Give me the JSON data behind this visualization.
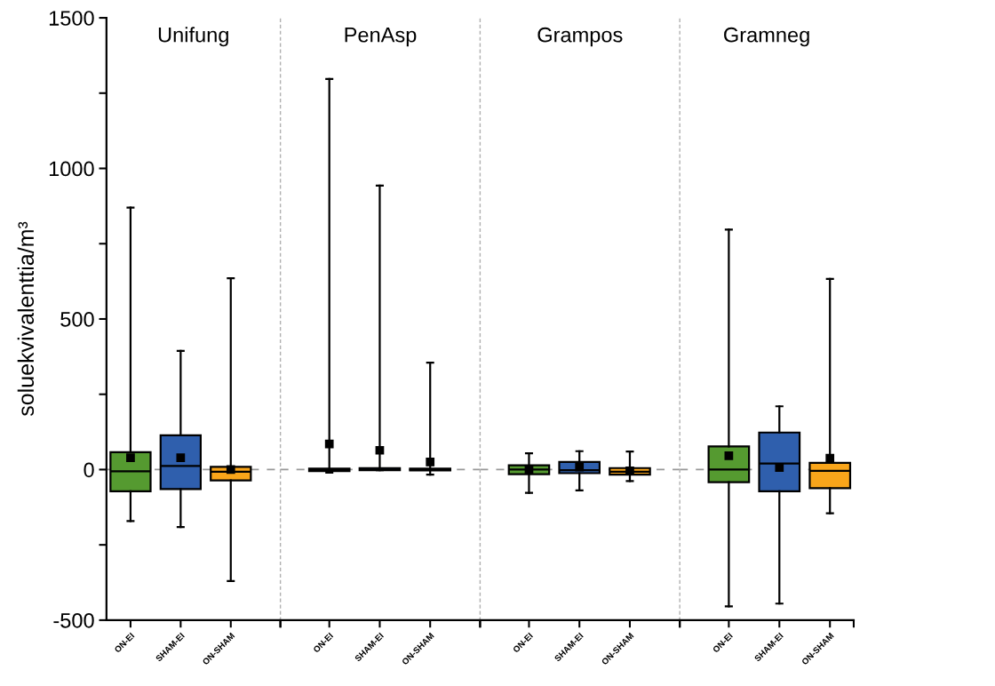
{
  "chart_data": [
    {
      "type": "box",
      "title": "Unifung",
      "ylabel": "soluekvivalenttia/m³",
      "categories": [
        "ON-EI",
        "SHAM-EI",
        "ON-SHAM"
      ],
      "colors": [
        "#559a30",
        "#2f5fad",
        "#f9a51a"
      ],
      "marker": "square",
      "boxes": [
        {
          "low": -171,
          "q1": -72,
          "median": -6,
          "q3": 58,
          "high": 870,
          "mean": 39
        },
        {
          "low": -191,
          "q1": -65,
          "median": 12,
          "q3": 114,
          "high": 394,
          "mean": 39
        },
        {
          "low": -370,
          "q1": -36,
          "median": -7,
          "q3": 9,
          "high": 635,
          "mean": 0
        }
      ],
      "ylim": [
        -500,
        1500
      ],
      "yticks": [
        -500,
        {
          "value": -250,
          "label": null
        },
        0,
        {
          "value": 250,
          "label": null
        },
        500,
        {
          "value": 750,
          "label": null
        },
        1000,
        {
          "value": 1250,
          "label": null
        },
        1500
      ],
      "ref_lines": [
        {
          "axis": "y",
          "value": 0,
          "label": null,
          "color": "#999999",
          "line_style": "dashed"
        }
      ]
    },
    {
      "type": "box",
      "title": "PenAsp",
      "categories": [
        "ON-EI",
        "SHAM-EI",
        "ON-SHAM"
      ],
      "colors": [
        "#559a30",
        "#2f5fad",
        "#f9a51a"
      ],
      "marker": "square",
      "boxes": [
        {
          "low": -10,
          "q1": -5,
          "median": 0,
          "q3": 3,
          "high": 1297,
          "mean": 85
        },
        {
          "low": -2,
          "q1": -2,
          "median": 0,
          "q3": 5,
          "high": 943,
          "mean": 64
        },
        {
          "low": -17,
          "q1": -3,
          "median": 0,
          "q3": 3,
          "high": 355,
          "mean": 25
        }
      ],
      "ylim": [
        -500,
        1500
      ],
      "tick_labels": "x",
      "ref_lines": [
        {
          "axis": "y",
          "value": 0,
          "label": null,
          "color": "#999999",
          "line_style": "dashed"
        }
      ]
    },
    {
      "type": "box",
      "title": "Grampos",
      "categories": [
        "ON-EI",
        "SHAM-EI",
        "ON-SHAM"
      ],
      "colors": [
        "#559a30",
        "#2f5fad",
        "#f9a51a"
      ],
      "marker": "square",
      "boxes": [
        {
          "low": -77,
          "q1": -15,
          "median": 0,
          "q3": 14,
          "high": 54,
          "mean": 1
        },
        {
          "low": -69,
          "q1": -12,
          "median": -2,
          "q3": 25,
          "high": 61,
          "mean": 8
        },
        {
          "low": -38,
          "q1": -17,
          "median": -7,
          "q3": 5,
          "high": 60,
          "mean": -4
        }
      ],
      "ylim": [
        -500,
        1500
      ],
      "tick_labels": "x",
      "ref_lines": [
        {
          "axis": "y",
          "value": 0,
          "label": null,
          "color": "#999999",
          "line_style": "dashed"
        }
      ]
    },
    {
      "type": "box",
      "title": "Gramneg",
      "categories": [
        "ON-EI",
        "SHAM-EI",
        "ON-SHAM"
      ],
      "colors": [
        "#559a30",
        "#2f5fad",
        "#f9a51a"
      ],
      "marker": "square",
      "boxes": [
        {
          "low": -454,
          "q1": -42,
          "median": 0,
          "q3": 77,
          "high": 797,
          "mean": 46
        },
        {
          "low": -445,
          "q1": -72,
          "median": 20,
          "q3": 123,
          "high": 210,
          "mean": 7
        },
        {
          "low": -145,
          "q1": -62,
          "median": -4,
          "q3": 22,
          "high": 633,
          "mean": 38
        }
      ],
      "ylim": [
        -500,
        1500
      ],
      "tick_labels": "x",
      "ref_lines": [
        {
          "axis": "y",
          "value": 0,
          "label": null,
          "color": "#999999",
          "line_style": "dashed"
        }
      ]
    }
  ]
}
